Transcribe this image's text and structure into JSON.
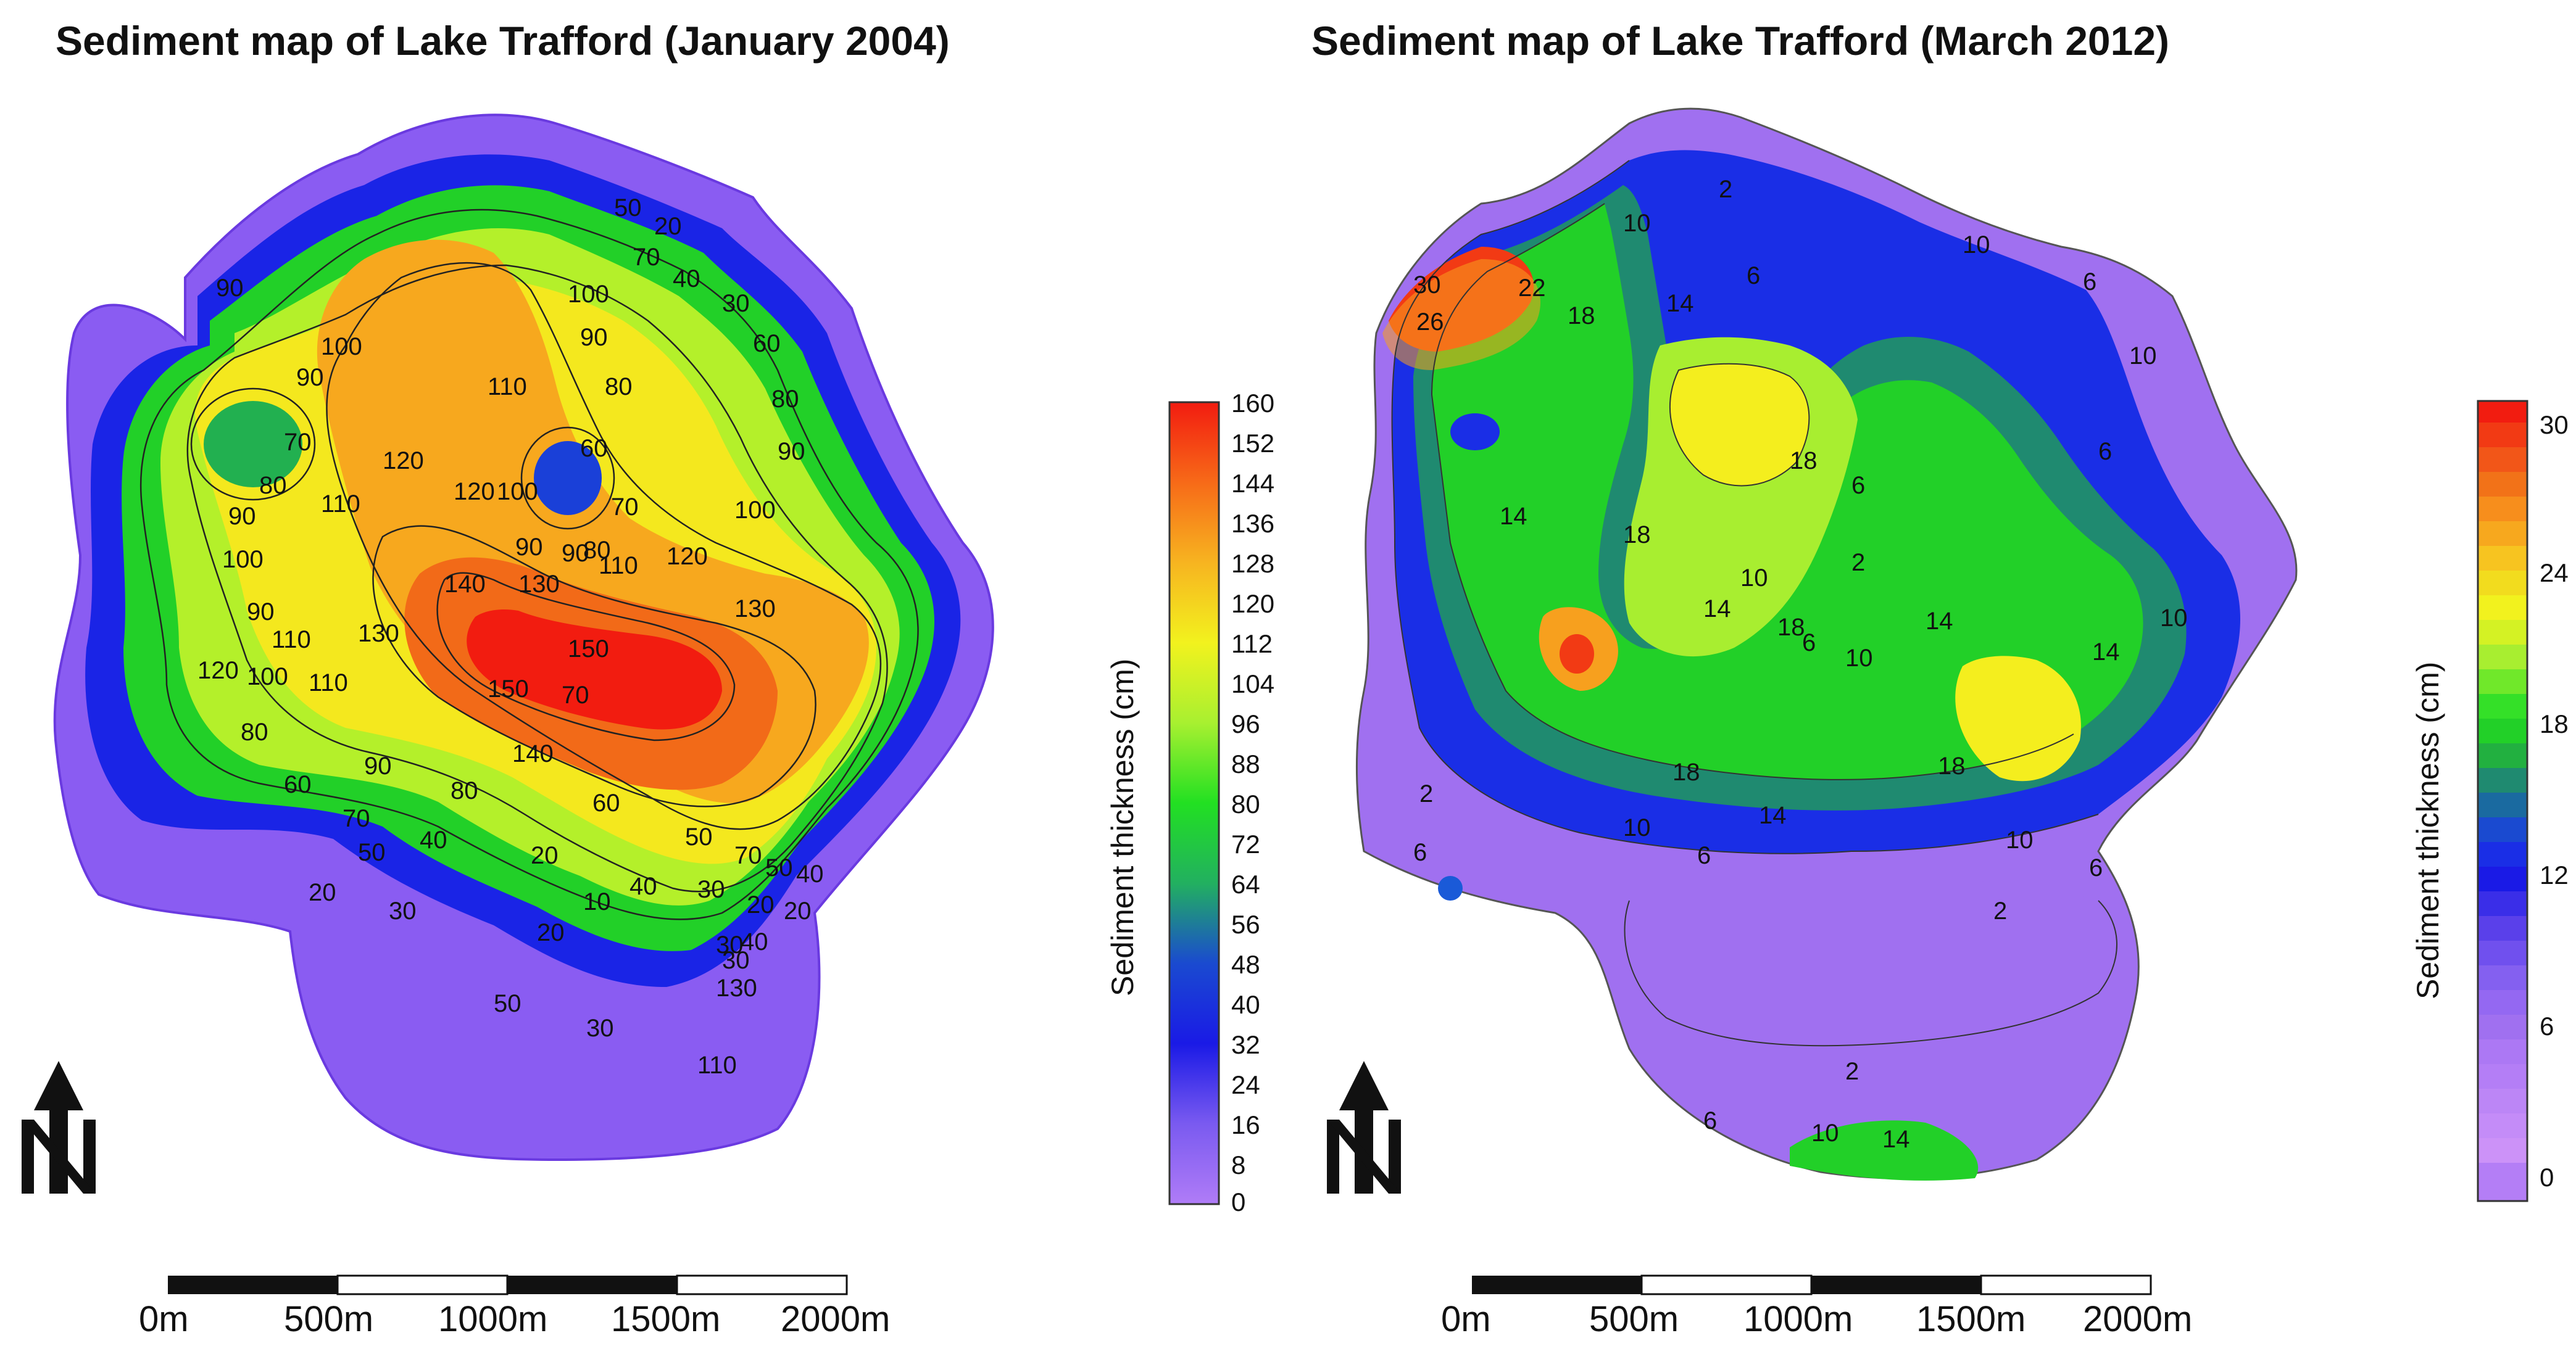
{
  "left_map": {
    "title": "Sediment map of Lake Trafford (January 2004)",
    "colorbar": {
      "title": "Sediment thickness (cm)",
      "ticks": [
        "160",
        "152",
        "144",
        "136",
        "128",
        "120",
        "112",
        "104",
        "96",
        "88",
        "80",
        "72",
        "64",
        "56",
        "48",
        "40",
        "32",
        "24",
        "16",
        "8",
        "0"
      ]
    },
    "contour_labels": [
      "90",
      "100",
      "90",
      "70",
      "80",
      "90",
      "100",
      "110",
      "120",
      "120",
      "110",
      "100",
      "90",
      "50",
      "20",
      "70",
      "40",
      "30",
      "100",
      "90",
      "60",
      "80",
      "90",
      "80",
      "70",
      "60",
      "90",
      "80",
      "110",
      "120",
      "100",
      "140",
      "130",
      "130",
      "150",
      "150",
      "140",
      "130",
      "110",
      "90",
      "80",
      "60",
      "30",
      "20",
      "50",
      "40",
      "70",
      "120",
      "100",
      "110",
      "90",
      "70",
      "80",
      "60",
      "50",
      "40",
      "30",
      "20",
      "10",
      "20",
      "30",
      "20",
      "20",
      "40",
      "50",
      "30",
      "130",
      "110",
      "70",
      "50",
      "40",
      "30"
    ]
  },
  "right_map": {
    "title": "Sediment map of Lake Trafford (March 2012)",
    "colorbar": {
      "title": "Sediment thickness (cm)",
      "ticks": [
        "30",
        "24",
        "18",
        "12",
        "6",
        "0"
      ]
    },
    "contour_labels": [
      "2",
      "10",
      "10",
      "6",
      "14",
      "6",
      "30",
      "22",
      "26",
      "18",
      "10",
      "6",
      "18",
      "14",
      "18",
      "6",
      "2",
      "18",
      "14",
      "10",
      "6",
      "10",
      "14",
      "10",
      "14",
      "18",
      "18",
      "2",
      "14",
      "10",
      "6",
      "10",
      "6",
      "2",
      "2",
      "6",
      "10",
      "14",
      "6"
    ]
  },
  "scale_bar": {
    "labels": [
      "0m",
      "500m",
      "1000m",
      "1500m",
      "2000m"
    ]
  },
  "north_arrow": {
    "label": "N"
  },
  "colors": {
    "violet": "#a070f0",
    "blue": "#1a2ee6",
    "green": "#22d022",
    "yellow": "#f2f21e",
    "orange": "#f7a61e",
    "red": "#f21c10"
  }
}
